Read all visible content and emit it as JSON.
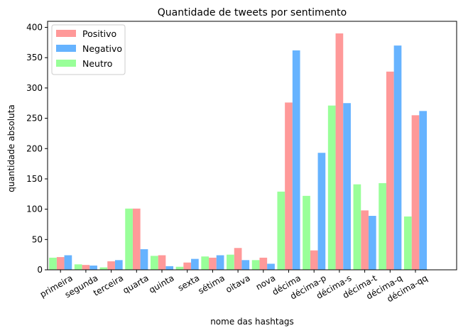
{
  "chart_data": {
    "type": "bar",
    "title": "Quantidade de tweets por sentimento",
    "xlabel": "nome das hashtags",
    "ylabel": "quantidade absoluta",
    "ylim": [
      0,
      410
    ],
    "yticks": [
      0,
      50,
      100,
      150,
      200,
      250,
      300,
      350,
      400
    ],
    "categories": [
      "primeira",
      "segunda",
      "terceira",
      "quarta",
      "quinta",
      "sexta",
      "sétima",
      "oitava",
      "nova",
      "décima",
      "décima-p",
      "décima-s",
      "décima-t",
      "décima-q",
      "décima-qq"
    ],
    "series": [
      {
        "name": "Positivo",
        "color": "#ff9999",
        "values": [
          21,
          8,
          14,
          101,
          24,
          12,
          20,
          36,
          20,
          276,
          32,
          390,
          98,
          327,
          255
        ]
      },
      {
        "name": "Negativo",
        "color": "#66b3ff",
        "values": [
          24,
          7,
          16,
          34,
          6,
          18,
          24,
          16,
          10,
          362,
          193,
          275,
          89,
          370,
          262
        ]
      },
      {
        "name": "Neutro",
        "color": "#99ff99",
        "values": [
          20,
          9,
          4,
          101,
          23,
          5,
          22,
          25,
          16,
          129,
          122,
          271,
          141,
          143,
          88
        ]
      }
    ],
    "legend_position": "top-left",
    "grid": false,
    "x_tick_rotation": 30
  }
}
